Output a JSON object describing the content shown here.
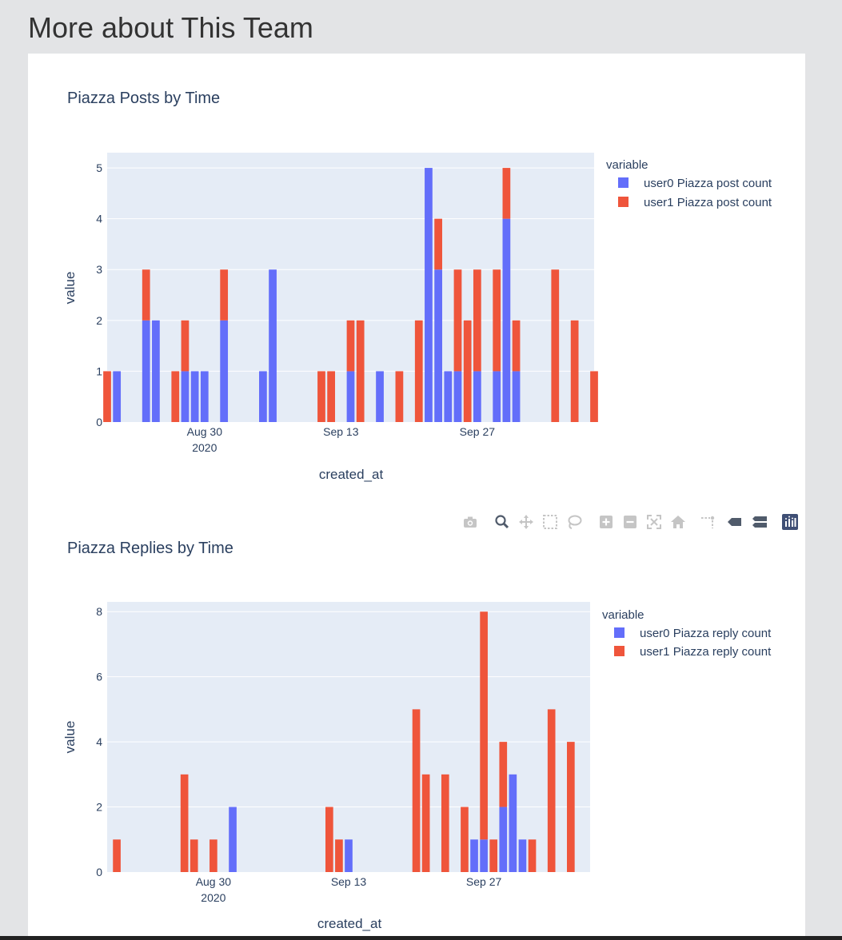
{
  "page": {
    "heading": "More about This Team"
  },
  "colors": {
    "user0": "#636efa",
    "user1": "#ef553b",
    "plot_bg": "#e5ecf6",
    "text": "#2a3f5f"
  },
  "modebar": {
    "icons": [
      "camera-icon",
      "zoom-icon",
      "pan-icon",
      "box-select-icon",
      "lasso-icon",
      "zoom-in-icon",
      "zoom-out-icon",
      "autoscale-icon",
      "reset-axes-icon",
      "spike-lines-icon",
      "hover-closest-icon",
      "hover-compare-icon",
      "plotly-logo-icon"
    ]
  },
  "chart_data": [
    {
      "type": "bar",
      "barmode": "stack",
      "title": "Piazza Posts by Time",
      "xlabel": "created_at",
      "ylabel": "value",
      "ylim": [
        0,
        5.3
      ],
      "y_ticks": [
        "0",
        "1",
        "2",
        "3",
        "4",
        "5"
      ],
      "x_ticks": [
        "Aug 30",
        "Sep 13",
        "Sep 27"
      ],
      "x_year_label": "2020",
      "x_range_days": [
        0,
        50
      ],
      "x_tick_days": [
        10,
        24,
        38
      ],
      "legend_title": "variable",
      "legend_position": "top-right",
      "days": [
        0,
        1,
        4,
        5,
        7,
        8,
        9,
        10,
        12,
        16,
        17,
        22,
        23,
        25,
        26,
        28,
        30,
        32,
        33,
        34,
        35,
        36,
        37,
        38,
        40,
        41,
        42,
        46,
        48,
        50
      ],
      "series": [
        {
          "name": "user0 Piazza post count",
          "values": [
            0,
            1,
            2,
            2,
            0,
            1,
            1,
            1,
            2,
            1,
            3,
            0,
            0,
            1,
            0,
            1,
            0,
            0,
            5,
            3,
            1,
            1,
            0,
            1,
            1,
            4,
            1,
            0,
            0,
            0
          ]
        },
        {
          "name": "user1 Piazza post count",
          "values": [
            1,
            0,
            1,
            0,
            1,
            1,
            0,
            0,
            1,
            0,
            0,
            1,
            1,
            1,
            2,
            0,
            1,
            2,
            0,
            1,
            0,
            2,
            2,
            2,
            2,
            1,
            1,
            3,
            2,
            1
          ]
        }
      ]
    },
    {
      "type": "bar",
      "barmode": "stack",
      "title": "Piazza Replies by Time",
      "xlabel": "created_at",
      "ylabel": "value",
      "ylim": [
        0,
        8.3
      ],
      "y_ticks": [
        "0",
        "2",
        "4",
        "6",
        "8"
      ],
      "y_tick_values": [
        0,
        2,
        4,
        6,
        8
      ],
      "x_ticks": [
        "Aug 30",
        "Sep 13",
        "Sep 27"
      ],
      "x_year_label": "2020",
      "x_range_days": [
        -1,
        49
      ],
      "x_tick_days": [
        10,
        24,
        38
      ],
      "legend_title": "variable",
      "legend_position": "top-right",
      "days": [
        0,
        7,
        8,
        10,
        12,
        22,
        23,
        24,
        31,
        32,
        34,
        36,
        37,
        38,
        39,
        40,
        41,
        42,
        43,
        45,
        47
      ],
      "series": [
        {
          "name": "user0 Piazza reply count",
          "values": [
            0,
            0,
            0,
            0,
            2,
            0,
            0,
            1,
            0,
            0,
            0,
            0,
            1,
            1,
            0,
            2,
            3,
            1,
            0,
            0,
            0
          ]
        },
        {
          "name": "user1 Piazza reply count",
          "values": [
            1,
            3,
            1,
            1,
            0,
            2,
            1,
            0,
            5,
            3,
            3,
            2,
            0,
            7,
            1,
            2,
            0,
            0,
            1,
            5,
            4
          ]
        }
      ]
    }
  ]
}
